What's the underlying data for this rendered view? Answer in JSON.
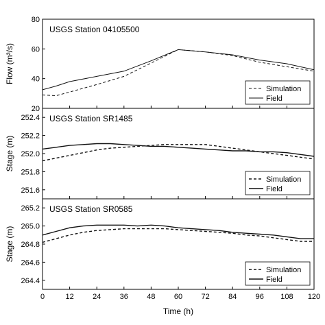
{
  "chart_data": [
    {
      "type": "line",
      "title": "USGS Station 04105500",
      "ylabel": "Flow (m³/s)",
      "xlabel": "",
      "xlim": [
        0,
        120
      ],
      "ylim": [
        20,
        80
      ],
      "yticks": [
        20,
        40,
        60,
        80
      ],
      "legend_position": "bottom-right",
      "series": [
        {
          "name": "Simulation",
          "style": "dashed",
          "x": [
            0,
            6,
            12,
            24,
            36,
            48,
            60,
            72,
            84,
            96,
            108,
            120
          ],
          "y": [
            29,
            28.5,
            31,
            36,
            41.5,
            50.5,
            59.5,
            58,
            55.5,
            51,
            48,
            45
          ]
        },
        {
          "name": "Field",
          "style": "solid",
          "x": [
            0,
            6,
            12,
            24,
            36,
            48,
            60,
            72,
            84,
            96,
            108,
            120
          ],
          "y": [
            32.5,
            35,
            38,
            41.5,
            45,
            52,
            59.5,
            58,
            56,
            52.5,
            50,
            46
          ]
        }
      ]
    },
    {
      "type": "line",
      "title": "USGS Station SR1485",
      "ylabel": "Stage (m)",
      "xlabel": "",
      "xlim": [
        0,
        120
      ],
      "ylim": [
        251.5,
        252.5
      ],
      "yticks": [
        251.6,
        251.8,
        252.0,
        252.2,
        252.4
      ],
      "legend_position": "bottom-right",
      "series": [
        {
          "name": "Simulation",
          "style": "dashed",
          "x": [
            0,
            6,
            12,
            18,
            24,
            30,
            36,
            42,
            48,
            54,
            60,
            66,
            72,
            78,
            84,
            90,
            96,
            102,
            108,
            114,
            120
          ],
          "y": [
            251.92,
            251.95,
            251.98,
            252.01,
            252.04,
            252.06,
            252.07,
            252.08,
            252.09,
            252.1,
            252.1,
            252.1,
            252.1,
            252.08,
            252.06,
            252.04,
            252.02,
            252.0,
            251.98,
            251.96,
            251.94
          ]
        },
        {
          "name": "Field",
          "style": "solid",
          "x": [
            0,
            6,
            12,
            18,
            24,
            30,
            36,
            42,
            48,
            54,
            60,
            66,
            72,
            78,
            84,
            90,
            96,
            102,
            108,
            114,
            120
          ],
          "y": [
            252.05,
            252.07,
            252.09,
            252.1,
            252.11,
            252.11,
            252.1,
            252.09,
            252.08,
            252.08,
            252.07,
            252.06,
            252.05,
            252.04,
            252.03,
            252.03,
            252.02,
            252.02,
            252.01,
            251.99,
            251.97
          ]
        }
      ]
    },
    {
      "type": "line",
      "title": "USGS Station SR0585",
      "ylabel": "Stage (m)",
      "xlabel": "Time (h)",
      "xlim": [
        0,
        120
      ],
      "ylim": [
        264.3,
        265.3
      ],
      "yticks": [
        264.4,
        264.6,
        264.8,
        265.0,
        265.2
      ],
      "xticks": [
        0,
        12,
        24,
        36,
        48,
        60,
        72,
        84,
        96,
        108,
        120
      ],
      "legend_position": "bottom-right",
      "series": [
        {
          "name": "Simulation",
          "style": "dashed",
          "x": [
            0,
            6,
            12,
            18,
            24,
            30,
            36,
            42,
            48,
            54,
            60,
            66,
            72,
            78,
            84,
            90,
            96,
            102,
            108,
            114,
            120
          ],
          "y": [
            264.82,
            264.86,
            264.9,
            264.93,
            264.95,
            264.96,
            264.97,
            264.97,
            264.97,
            264.97,
            264.96,
            264.95,
            264.94,
            264.93,
            264.92,
            264.9,
            264.89,
            264.87,
            264.85,
            264.83,
            264.83
          ]
        },
        {
          "name": "Field",
          "style": "solid",
          "x": [
            0,
            6,
            12,
            18,
            24,
            30,
            36,
            42,
            48,
            54,
            60,
            66,
            72,
            78,
            84,
            90,
            96,
            102,
            108,
            114,
            120
          ],
          "y": [
            264.9,
            264.94,
            264.98,
            265.0,
            265.01,
            265.01,
            265.01,
            265.0,
            265.01,
            265.0,
            264.98,
            264.97,
            264.96,
            264.95,
            264.93,
            264.92,
            264.91,
            264.9,
            264.88,
            264.86,
            264.86
          ]
        }
      ]
    }
  ]
}
